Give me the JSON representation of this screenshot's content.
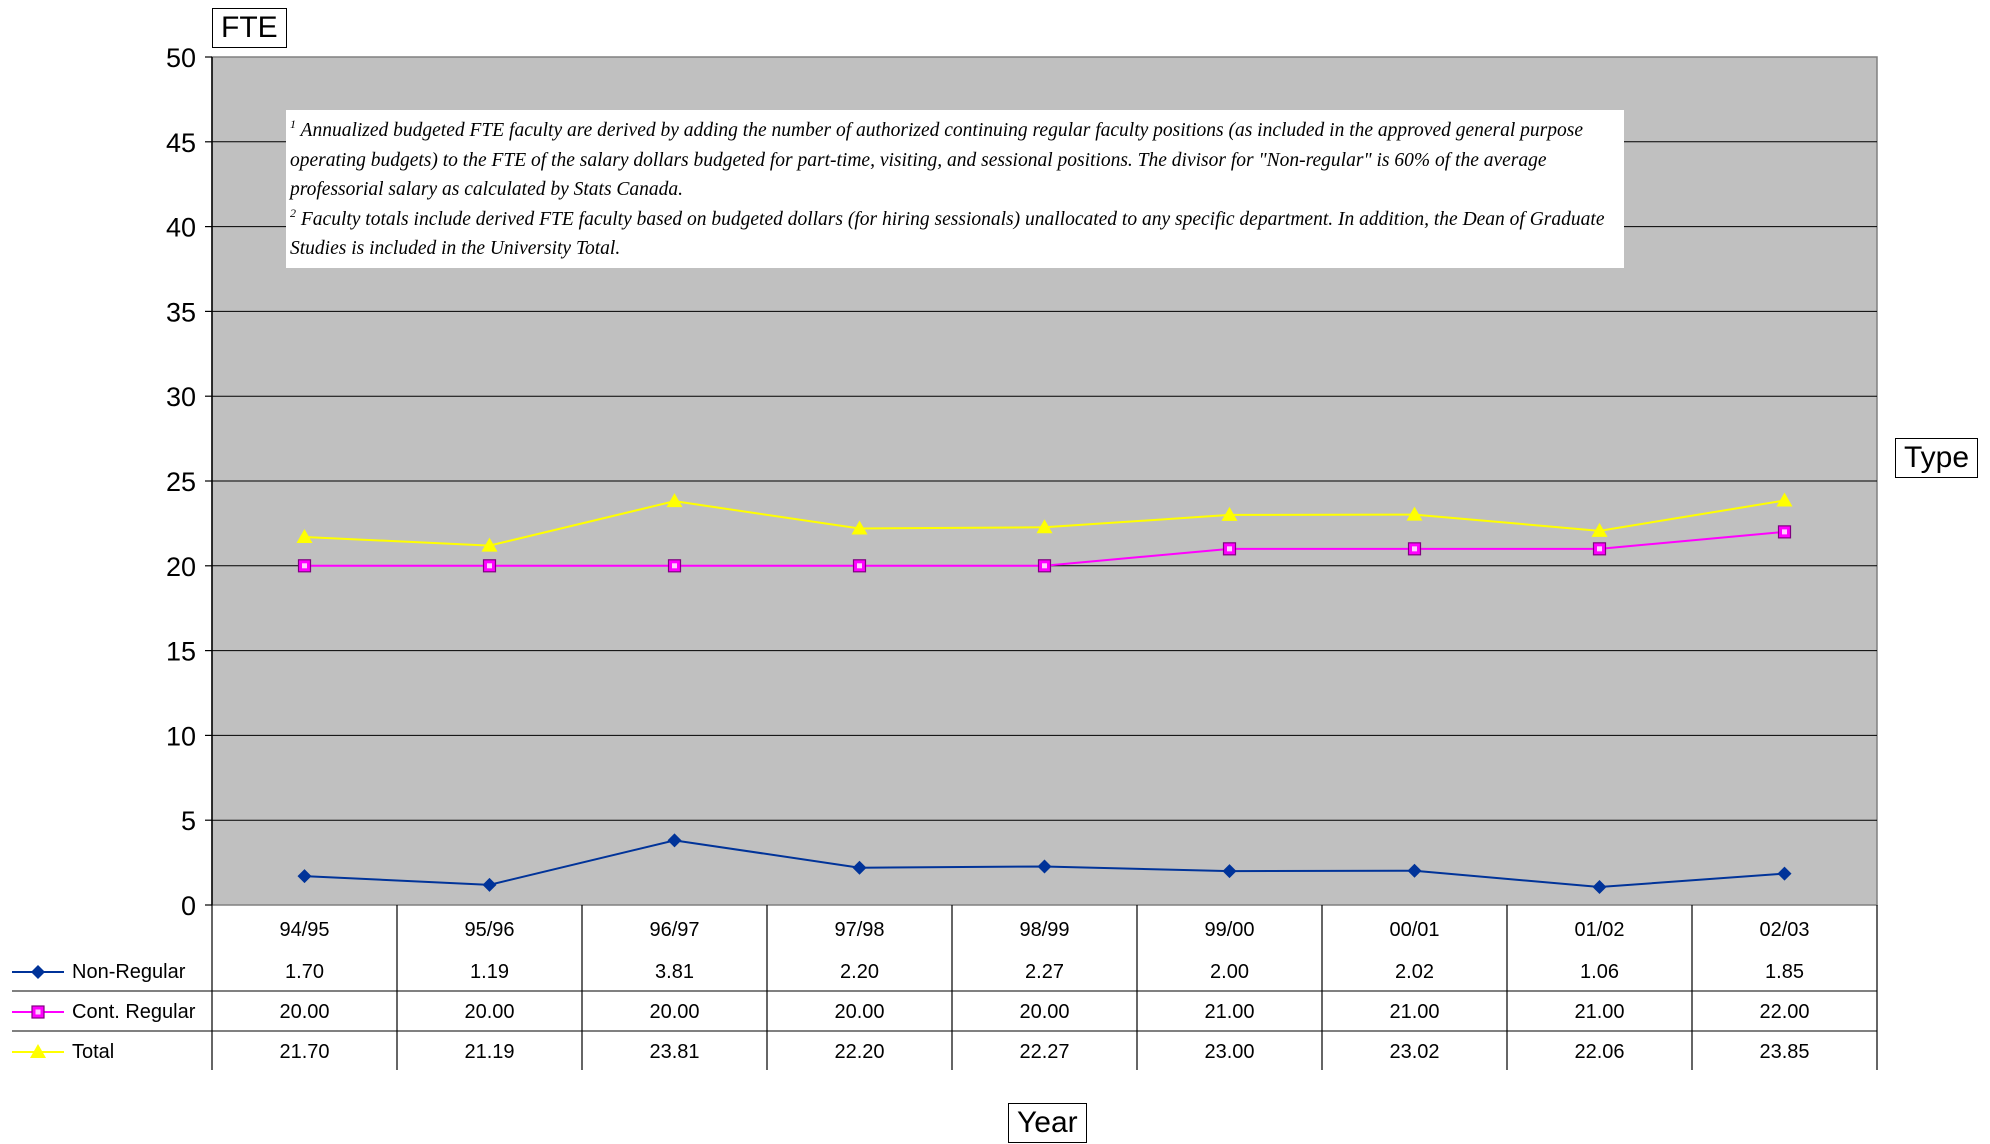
{
  "chart_data": {
    "type": "line",
    "ylabel": "FTE",
    "xlabel": "Year",
    "legend_title": "Type",
    "ylim": [
      0,
      50
    ],
    "yticks": [
      0,
      5,
      10,
      15,
      20,
      25,
      30,
      35,
      40,
      45,
      50
    ],
    "grid": true,
    "legend_placement": "data-table-left",
    "plot_background": "#c0c0c0",
    "categories": [
      "94/95",
      "95/96",
      "96/97",
      "97/98",
      "98/99",
      "99/00",
      "00/01",
      "01/02",
      "02/03"
    ],
    "series": [
      {
        "name": "Non-Regular",
        "color": "#003399",
        "marker": "diamond",
        "values": [
          1.7,
          1.19,
          3.81,
          2.2,
          2.27,
          2.0,
          2.02,
          1.06,
          1.85
        ],
        "labels": [
          "1.70",
          "1.19",
          "3.81",
          "2.20",
          "2.27",
          "2.00",
          "2.02",
          "1.06",
          "1.85"
        ]
      },
      {
        "name": "Cont. Regular",
        "color": "#ff00ff",
        "marker": "square",
        "values": [
          20.0,
          20.0,
          20.0,
          20.0,
          20.0,
          21.0,
          21.0,
          21.0,
          22.0
        ],
        "labels": [
          "20.00",
          "20.00",
          "20.00",
          "20.00",
          "20.00",
          "21.00",
          "21.00",
          "21.00",
          "22.00"
        ]
      },
      {
        "name": "Total",
        "color": "#ffff00",
        "marker": "triangle",
        "values": [
          21.7,
          21.19,
          23.81,
          22.2,
          22.27,
          23.0,
          23.02,
          22.06,
          23.85
        ],
        "labels": [
          "21.70",
          "21.19",
          "23.81",
          "22.20",
          "22.27",
          "23.00",
          "23.02",
          "22.06",
          "23.85"
        ]
      }
    ],
    "annotations": {
      "note1_sup": "1",
      "note1_text": "Annualized budgeted FTE faculty are derived by adding the number of authorized continuing regular faculty positions (as included in the approved general purpose operating budgets) to the FTE of the salary dollars budgeted for part-time, visiting, and sessional positions.  The divisor for \"Non-regular\" is 60% of the average professorial salary as calculated by Stats Canada.",
      "note2_sup": "2",
      "note2_text": "Faculty totals include derived FTE faculty based on budgeted dollars (for hiring sessionals) unallocated to any specific department.  In addition, the Dean of Graduate Studies is included in the University Total."
    }
  }
}
